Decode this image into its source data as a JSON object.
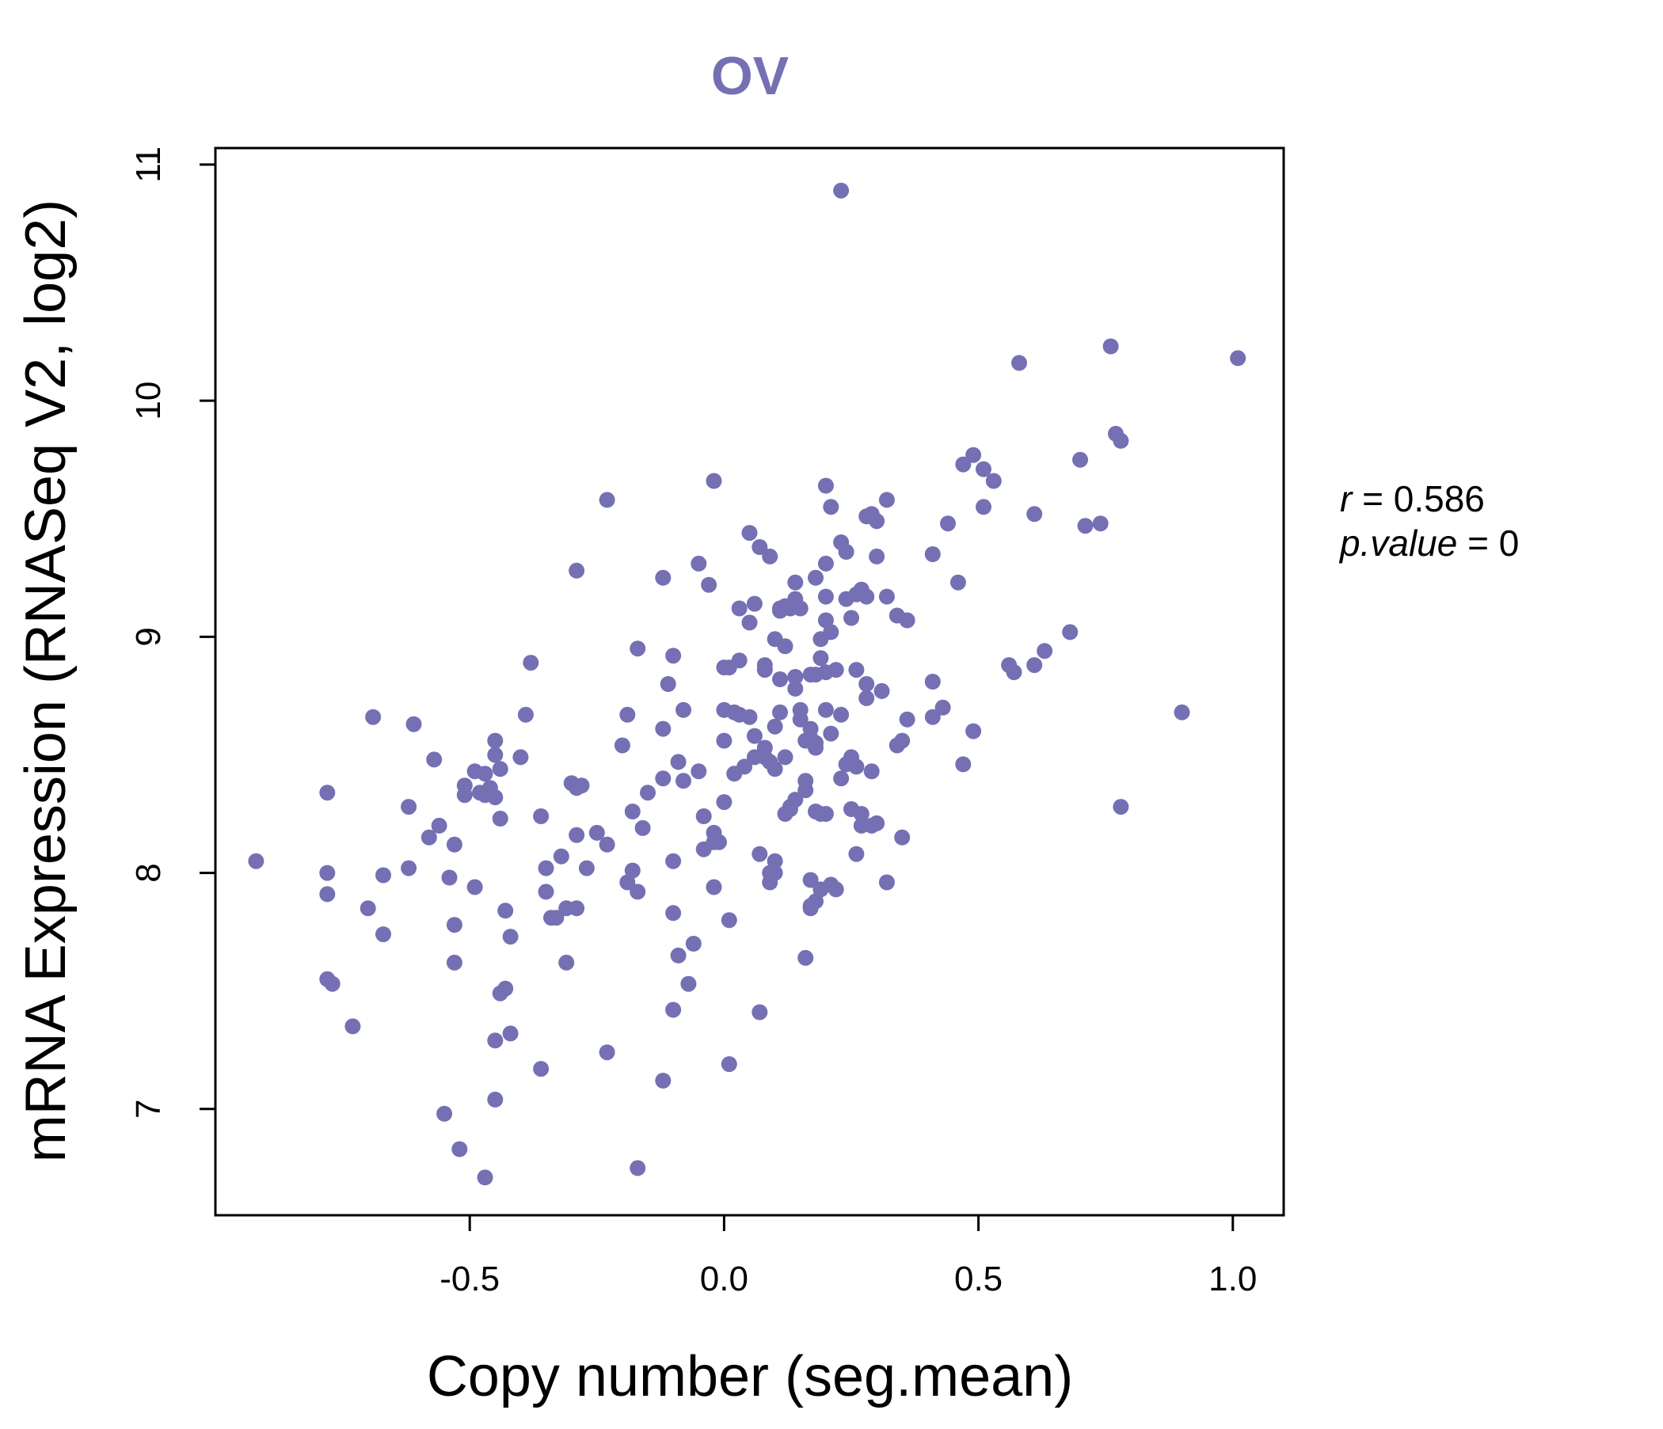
{
  "colors": {
    "accent": "#7570b3",
    "axis": "#000000",
    "background": "#ffffff"
  },
  "chart_data": {
    "type": "scatter",
    "title": "OV",
    "xlabel": "Copy number (seg.mean)",
    "ylabel": "mRNA Expression (RNASeq V2, log2)",
    "xlim": [
      -1.0,
      1.1
    ],
    "ylim": [
      6.55,
      11.07
    ],
    "xticks": [
      -0.5,
      0.0,
      0.5,
      1.0
    ],
    "xtick_labels": [
      "-0.5",
      "0.0",
      "0.5",
      "1.0"
    ],
    "yticks": [
      7,
      8,
      9,
      10,
      11
    ],
    "ytick_labels": [
      "7",
      "8",
      "9",
      "10",
      "11"
    ],
    "grid": false,
    "legend": null,
    "annotation": {
      "r_label": "r",
      "r_eq": " = ",
      "r_value": "0.586",
      "p_label": "p.value",
      "p_eq": " = ",
      "p_value": "0"
    },
    "series": [
      {
        "name": "OV",
        "points": [
          [
            -0.92,
            8.05
          ],
          [
            -0.78,
            8.34
          ],
          [
            -0.78,
            8.0
          ],
          [
            -0.78,
            7.91
          ],
          [
            -0.78,
            7.55
          ],
          [
            -0.77,
            7.53
          ],
          [
            -0.73,
            7.35
          ],
          [
            -0.7,
            7.85
          ],
          [
            -0.69,
            8.66
          ],
          [
            -0.67,
            7.74
          ],
          [
            -0.67,
            7.99
          ],
          [
            -0.62,
            8.28
          ],
          [
            -0.62,
            8.02
          ],
          [
            -0.61,
            8.63
          ],
          [
            -0.58,
            8.15
          ],
          [
            -0.57,
            8.48
          ],
          [
            -0.56,
            8.2
          ],
          [
            -0.55,
            6.98
          ],
          [
            -0.54,
            7.98
          ],
          [
            -0.53,
            8.12
          ],
          [
            -0.53,
            7.78
          ],
          [
            -0.53,
            7.62
          ],
          [
            -0.52,
            6.83
          ],
          [
            -0.51,
            8.37
          ],
          [
            -0.51,
            8.33
          ],
          [
            -0.49,
            8.43
          ],
          [
            -0.49,
            7.94
          ],
          [
            -0.48,
            8.34
          ],
          [
            -0.47,
            8.42
          ],
          [
            -0.47,
            8.33
          ],
          [
            -0.47,
            6.71
          ],
          [
            -0.46,
            8.36
          ],
          [
            -0.45,
            8.32
          ],
          [
            -0.45,
            8.56
          ],
          [
            -0.45,
            8.5
          ],
          [
            -0.45,
            7.29
          ],
          [
            -0.45,
            7.04
          ],
          [
            -0.44,
            8.44
          ],
          [
            -0.44,
            8.23
          ],
          [
            -0.44,
            7.49
          ],
          [
            -0.43,
            7.84
          ],
          [
            -0.43,
            7.51
          ],
          [
            -0.42,
            7.73
          ],
          [
            -0.42,
            7.32
          ],
          [
            -0.4,
            8.49
          ],
          [
            -0.39,
            8.67
          ],
          [
            -0.38,
            8.89
          ],
          [
            -0.36,
            8.24
          ],
          [
            -0.36,
            7.17
          ],
          [
            -0.35,
            8.02
          ],
          [
            -0.35,
            7.92
          ],
          [
            -0.34,
            7.81
          ],
          [
            -0.33,
            7.81
          ],
          [
            -0.32,
            8.07
          ],
          [
            -0.31,
            7.62
          ],
          [
            -0.31,
            7.85
          ],
          [
            -0.3,
            8.38
          ],
          [
            -0.29,
            9.28
          ],
          [
            -0.29,
            8.36
          ],
          [
            -0.29,
            7.85
          ],
          [
            -0.29,
            8.16
          ],
          [
            -0.28,
            8.37
          ],
          [
            -0.27,
            8.02
          ],
          [
            -0.25,
            8.17
          ],
          [
            -0.23,
            9.58
          ],
          [
            -0.23,
            8.12
          ],
          [
            -0.23,
            7.24
          ],
          [
            -0.2,
            8.54
          ],
          [
            -0.19,
            8.67
          ],
          [
            -0.19,
            7.96
          ],
          [
            -0.18,
            8.26
          ],
          [
            -0.18,
            8.01
          ],
          [
            -0.17,
            8.95
          ],
          [
            -0.17,
            6.75
          ],
          [
            -0.16,
            8.19
          ],
          [
            -0.15,
            8.34
          ],
          [
            -0.17,
            7.92
          ],
          [
            -0.12,
            9.25
          ],
          [
            -0.12,
            8.61
          ],
          [
            -0.12,
            8.4
          ],
          [
            -0.12,
            7.12
          ],
          [
            -0.11,
            8.8
          ],
          [
            -0.1,
            8.05
          ],
          [
            -0.1,
            7.83
          ],
          [
            -0.1,
            7.42
          ],
          [
            -0.1,
            8.92
          ],
          [
            -0.09,
            7.65
          ],
          [
            -0.09,
            8.47
          ],
          [
            -0.08,
            8.69
          ],
          [
            -0.08,
            8.39
          ],
          [
            -0.07,
            7.53
          ],
          [
            -0.06,
            7.7
          ],
          [
            -0.05,
            9.31
          ],
          [
            -0.05,
            8.43
          ],
          [
            -0.04,
            8.24
          ],
          [
            -0.04,
            8.1
          ],
          [
            -0.03,
            9.22
          ],
          [
            -0.02,
            9.66
          ],
          [
            -0.02,
            8.17
          ],
          [
            -0.02,
            7.94
          ],
          [
            -0.02,
            8.13
          ],
          [
            -0.01,
            8.13
          ],
          [
            0.0,
            8.87
          ],
          [
            0.0,
            8.69
          ],
          [
            0.0,
            8.56
          ],
          [
            0.0,
            8.3
          ],
          [
            0.01,
            8.87
          ],
          [
            0.01,
            7.8
          ],
          [
            0.01,
            7.19
          ],
          [
            0.02,
            8.68
          ],
          [
            0.02,
            8.42
          ],
          [
            0.03,
            9.12
          ],
          [
            0.03,
            8.9
          ],
          [
            0.03,
            8.67
          ],
          [
            0.04,
            8.45
          ],
          [
            0.05,
            9.06
          ],
          [
            0.05,
            8.66
          ],
          [
            0.05,
            9.44
          ],
          [
            0.06,
            9.14
          ],
          [
            0.06,
            8.49
          ],
          [
            0.07,
            9.38
          ],
          [
            0.06,
            8.58
          ],
          [
            0.07,
            7.41
          ],
          [
            0.07,
            8.08
          ],
          [
            0.08,
            8.88
          ],
          [
            0.08,
            8.86
          ],
          [
            0.08,
            8.53
          ],
          [
            0.08,
            8.49
          ],
          [
            0.09,
            9.34
          ],
          [
            0.09,
            8.47
          ],
          [
            0.09,
            8.0
          ],
          [
            0.09,
            7.96
          ],
          [
            0.1,
            8.99
          ],
          [
            0.1,
            8.62
          ],
          [
            0.1,
            8.44
          ],
          [
            0.1,
            8.05
          ],
          [
            0.1,
            8.0
          ],
          [
            0.11,
            9.12
          ],
          [
            0.11,
            9.11
          ],
          [
            0.11,
            8.82
          ],
          [
            0.11,
            8.68
          ],
          [
            0.12,
            9.13
          ],
          [
            0.12,
            8.96
          ],
          [
            0.12,
            8.49
          ],
          [
            0.12,
            8.25
          ],
          [
            0.13,
            9.12
          ],
          [
            0.13,
            8.28
          ],
          [
            0.13,
            8.27
          ],
          [
            0.14,
            9.23
          ],
          [
            0.14,
            9.16
          ],
          [
            0.14,
            8.83
          ],
          [
            0.14,
            8.78
          ],
          [
            0.14,
            8.31
          ],
          [
            0.15,
            9.12
          ],
          [
            0.15,
            8.69
          ],
          [
            0.15,
            8.65
          ],
          [
            0.16,
            8.56
          ],
          [
            0.16,
            8.39
          ],
          [
            0.16,
            8.35
          ],
          [
            0.16,
            7.64
          ],
          [
            0.17,
            8.84
          ],
          [
            0.17,
            8.61
          ],
          [
            0.17,
            8.57
          ],
          [
            0.17,
            7.97
          ],
          [
            0.17,
            7.86
          ],
          [
            0.17,
            7.85
          ],
          [
            0.18,
            9.25
          ],
          [
            0.18,
            8.84
          ],
          [
            0.18,
            8.55
          ],
          [
            0.18,
            8.53
          ],
          [
            0.18,
            8.26
          ],
          [
            0.18,
            7.88
          ],
          [
            0.19,
            8.99
          ],
          [
            0.19,
            8.91
          ],
          [
            0.19,
            8.25
          ],
          [
            0.19,
            7.93
          ],
          [
            0.2,
            9.64
          ],
          [
            0.2,
            9.31
          ],
          [
            0.2,
            9.17
          ],
          [
            0.2,
            9.07
          ],
          [
            0.2,
            8.85
          ],
          [
            0.2,
            8.69
          ],
          [
            0.2,
            8.25
          ],
          [
            0.21,
            9.55
          ],
          [
            0.21,
            9.02
          ],
          [
            0.21,
            8.59
          ],
          [
            0.21,
            7.95
          ],
          [
            0.22,
            8.86
          ],
          [
            0.22,
            7.93
          ],
          [
            0.23,
            10.89
          ],
          [
            0.23,
            9.4
          ],
          [
            0.23,
            8.67
          ],
          [
            0.23,
            8.4
          ],
          [
            0.24,
            9.36
          ],
          [
            0.24,
            9.16
          ],
          [
            0.24,
            8.46
          ],
          [
            0.25,
            9.08
          ],
          [
            0.25,
            8.49
          ],
          [
            0.25,
            8.27
          ],
          [
            0.26,
            9.18
          ],
          [
            0.26,
            8.86
          ],
          [
            0.26,
            8.45
          ],
          [
            0.26,
            8.08
          ],
          [
            0.27,
            9.2
          ],
          [
            0.27,
            8.2
          ],
          [
            0.27,
            8.25
          ],
          [
            0.28,
            9.51
          ],
          [
            0.28,
            9.17
          ],
          [
            0.28,
            8.8
          ],
          [
            0.28,
            8.74
          ],
          [
            0.29,
            9.52
          ],
          [
            0.29,
            8.2
          ],
          [
            0.29,
            8.43
          ],
          [
            0.3,
            9.49
          ],
          [
            0.3,
            9.34
          ],
          [
            0.3,
            8.21
          ],
          [
            0.31,
            8.77
          ],
          [
            0.32,
            9.58
          ],
          [
            0.32,
            7.96
          ],
          [
            0.32,
            9.17
          ],
          [
            0.34,
            8.54
          ],
          [
            0.34,
            9.09
          ],
          [
            0.35,
            8.56
          ],
          [
            0.35,
            8.15
          ],
          [
            0.36,
            9.07
          ],
          [
            0.36,
            8.65
          ],
          [
            0.41,
            9.35
          ],
          [
            0.41,
            8.81
          ],
          [
            0.41,
            8.66
          ],
          [
            0.43,
            8.7
          ],
          [
            0.44,
            9.48
          ],
          [
            0.46,
            9.23
          ],
          [
            0.47,
            9.73
          ],
          [
            0.47,
            8.46
          ],
          [
            0.49,
            9.77
          ],
          [
            0.49,
            8.6
          ],
          [
            0.51,
            9.71
          ],
          [
            0.51,
            9.55
          ],
          [
            0.53,
            9.66
          ],
          [
            0.56,
            8.88
          ],
          [
            0.57,
            8.85
          ],
          [
            0.58,
            10.16
          ],
          [
            0.61,
            9.52
          ],
          [
            0.61,
            8.88
          ],
          [
            0.63,
            8.94
          ],
          [
            0.68,
            9.02
          ],
          [
            0.7,
            9.75
          ],
          [
            0.71,
            9.47
          ],
          [
            0.74,
            9.48
          ],
          [
            0.76,
            10.23
          ],
          [
            0.77,
            9.86
          ],
          [
            0.78,
            9.83
          ],
          [
            0.78,
            8.28
          ],
          [
            0.9,
            8.68
          ],
          [
            1.01,
            10.18
          ]
        ]
      }
    ]
  }
}
